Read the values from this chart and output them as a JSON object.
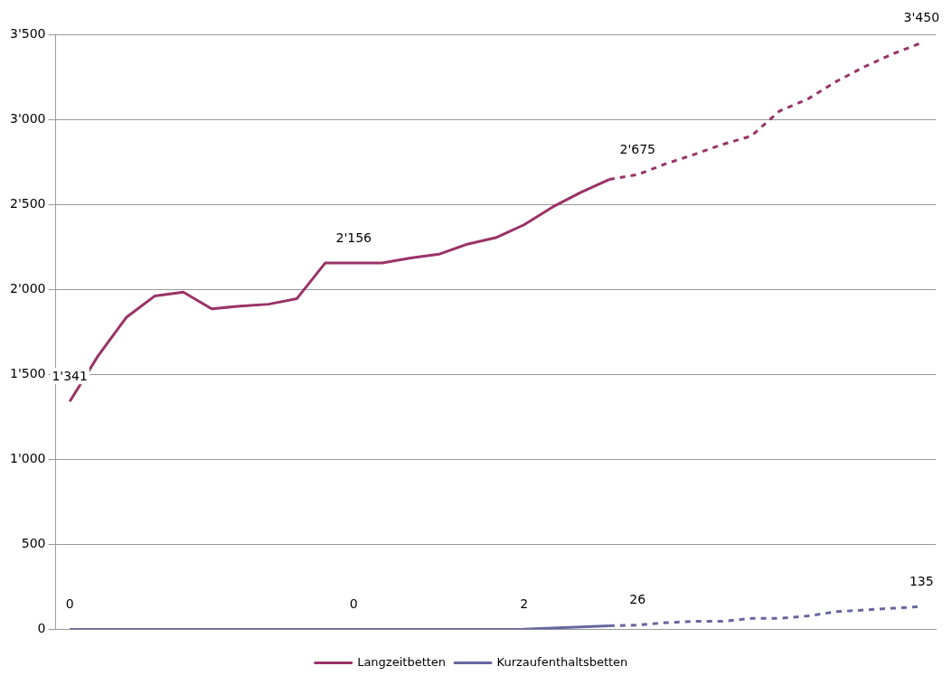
{
  "chart_data": {
    "type": "line",
    "categories": [
      null,
      null,
      null,
      null,
      null,
      null,
      null,
      null,
      null,
      null,
      null,
      null,
      null,
      null,
      null,
      null,
      null,
      null,
      null,
      null,
      null,
      null,
      null,
      null,
      null,
      null,
      null,
      null,
      null,
      null,
      null
    ],
    "series": [
      {
        "name": "Langzeitbetten",
        "color": "#993366",
        "line_style": "solid",
        "values": [
          1341,
          1610,
          1837,
          1962,
          1984,
          1886,
          1902,
          1913,
          1946,
          2156,
          2156,
          2155,
          2185,
          2207,
          2266,
          2304,
          2380,
          2484,
          2571,
          2647,
          null,
          null,
          null,
          null,
          null,
          null,
          null,
          null,
          null,
          null,
          null
        ],
        "value_labels": [
          "1'341",
          null,
          null,
          null,
          null,
          null,
          null,
          null,
          null,
          null,
          "2'156",
          null,
          null,
          null,
          null,
          null,
          null,
          null,
          null,
          null,
          null,
          null,
          null,
          null,
          null,
          null,
          null,
          null,
          null,
          null,
          null
        ]
      },
      {
        "color": "#993366",
        "line_style": "dashed",
        "values": [
          null,
          null,
          null,
          null,
          null,
          null,
          null,
          null,
          null,
          null,
          null,
          null,
          null,
          null,
          null,
          null,
          null,
          null,
          null,
          2647,
          2675,
          2739,
          2794,
          2853,
          2902,
          3049,
          3120,
          3223,
          3310,
          3386,
          3450
        ],
        "value_labels": [
          null,
          null,
          null,
          null,
          null,
          null,
          null,
          null,
          null,
          null,
          null,
          null,
          null,
          null,
          null,
          null,
          null,
          null,
          null,
          null,
          "2'675",
          null,
          null,
          null,
          null,
          null,
          null,
          null,
          null,
          null,
          "3'450"
        ]
      },
      {
        "name": "Kurzaufenthaltsbetten",
        "color": "#6666a0",
        "line_style": "solid",
        "values": [
          0,
          0,
          0,
          0,
          0,
          0,
          0,
          0,
          0,
          0,
          0,
          0,
          0,
          0,
          0,
          0,
          2,
          8,
          15,
          22,
          null,
          null,
          null,
          null,
          null,
          null,
          null,
          null,
          null,
          null,
          null
        ],
        "value_labels": [
          "0",
          null,
          null,
          null,
          null,
          null,
          null,
          null,
          null,
          null,
          "0",
          null,
          null,
          null,
          null,
          null,
          "2",
          null,
          null,
          null,
          null,
          null,
          null,
          null,
          null,
          null,
          null,
          null,
          null,
          null,
          null
        ]
      },
      {
        "color": "#6666a0",
        "line_style": "dashed",
        "values": [
          null,
          null,
          null,
          null,
          null,
          null,
          null,
          null,
          null,
          null,
          null,
          null,
          null,
          null,
          null,
          null,
          null,
          null,
          null,
          22,
          26,
          40,
          48,
          48,
          65,
          65,
          80,
          105,
          115,
          125,
          135
        ],
        "value_labels": [
          null,
          null,
          null,
          null,
          null,
          null,
          null,
          null,
          null,
          null,
          null,
          null,
          null,
          null,
          null,
          null,
          null,
          null,
          null,
          null,
          "26",
          null,
          null,
          null,
          null,
          null,
          null,
          null,
          null,
          null,
          "135"
        ]
      }
    ],
    "ylim": [
      0,
      3500
    ],
    "yticks": [
      0,
      500,
      {
        "value": 1000,
        "label": "1'000"
      },
      {
        "value": 1500,
        "label": "1'500"
      },
      {
        "value": 2000,
        "label": "2'000"
      },
      {
        "value": 2500,
        "label": "2'500"
      },
      {
        "value": 3000,
        "label": "3'000"
      },
      {
        "value": 3500,
        "label": "3'500"
      }
    ],
    "grid": "y",
    "legend": "bottom",
    "marker": "none"
  }
}
